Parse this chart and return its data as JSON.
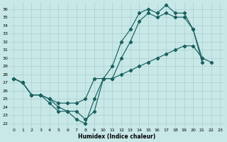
{
  "xlabel": "Humidex (Indice chaleur)",
  "bg_color": "#c8e8e8",
  "grid_color": "#aacece",
  "line_color": "#1a6060",
  "xlim": [
    -0.5,
    23.5
  ],
  "ylim": [
    21.5,
    36.8
  ],
  "xticks": [
    0,
    1,
    2,
    3,
    4,
    5,
    6,
    7,
    8,
    9,
    10,
    11,
    12,
    13,
    14,
    15,
    16,
    17,
    18,
    19,
    20,
    21,
    22,
    23
  ],
  "yticks": [
    22,
    23,
    24,
    25,
    26,
    27,
    28,
    29,
    30,
    31,
    32,
    33,
    34,
    35,
    36
  ],
  "series1_x": [
    0,
    1,
    2,
    3,
    4,
    5,
    6,
    7,
    8,
    9,
    10,
    11,
    12,
    13,
    14,
    15,
    16,
    17,
    18,
    19,
    20,
    21
  ],
  "series1_y": [
    27.5,
    27.0,
    25.5,
    25.5,
    24.5,
    23.5,
    23.5,
    23.5,
    22.5,
    23.5,
    27.5,
    29.0,
    32.0,
    33.5,
    35.5,
    36.0,
    35.5,
    36.5,
    35.5,
    35.5,
    33.5,
    30.0
  ],
  "series2_x": [
    0,
    1,
    2,
    3,
    4,
    5,
    6,
    7,
    8,
    9,
    10,
    11,
    12,
    13,
    14,
    15,
    16,
    17,
    18,
    19,
    20,
    21
  ],
  "series2_y": [
    27.5,
    27.0,
    25.5,
    25.5,
    25.0,
    24.0,
    23.5,
    22.5,
    22.0,
    25.0,
    27.5,
    27.5,
    30.0,
    32.0,
    34.5,
    35.5,
    35.0,
    35.5,
    35.0,
    35.0,
    33.5,
    29.5
  ],
  "series3_x": [
    0,
    1,
    2,
    3,
    4,
    5,
    6,
    7,
    8,
    9,
    10,
    11,
    12,
    13,
    14,
    15,
    16,
    17,
    18,
    19,
    20,
    21,
    22
  ],
  "series3_y": [
    27.5,
    27.0,
    25.5,
    25.5,
    25.0,
    24.5,
    24.5,
    24.5,
    25.0,
    27.5,
    27.5,
    27.5,
    28.0,
    28.5,
    29.0,
    29.5,
    30.0,
    30.5,
    31.0,
    31.5,
    31.5,
    30.0,
    29.5
  ]
}
